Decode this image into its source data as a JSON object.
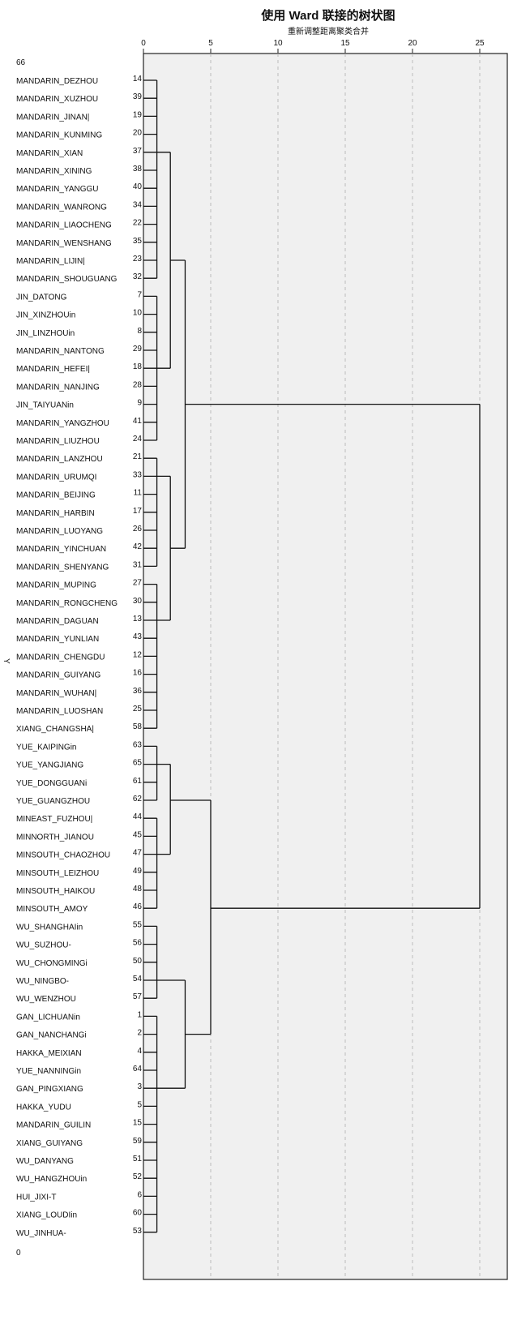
{
  "chart_data": {
    "type": "dendrogram",
    "title": "使用 Ward 联接的树状图",
    "xlabel": "重新调整距离聚类合并",
    "ylabel": "Y",
    "y_top_label": "66",
    "y_bottom_label": "0",
    "xlim": [
      0,
      25
    ],
    "xticks": [
      "0",
      "5",
      "10",
      "15",
      "20",
      "25"
    ],
    "grid": true,
    "leaves": [
      {
        "label": "MANDARIN_DEZHOU",
        "id": "14"
      },
      {
        "label": "MANDARIN_XUZHOU",
        "id": "39"
      },
      {
        "label": "MANDARIN_JINAN|",
        "id": "19"
      },
      {
        "label": "MANDARIN_KUNMING",
        "id": "20"
      },
      {
        "label": "MANDARIN_XIAN",
        "id": "37"
      },
      {
        "label": "MANDARIN_XINING",
        "id": "38"
      },
      {
        "label": "MANDARIN_YANGGU",
        "id": "40"
      },
      {
        "label": "MANDARIN_WANRONG",
        "id": "34"
      },
      {
        "label": "MANDARIN_LIAOCHENG",
        "id": "22"
      },
      {
        "label": "MANDARIN_WENSHANG",
        "id": "35"
      },
      {
        "label": "MANDARIN_LIJIN|",
        "id": "23"
      },
      {
        "label": "MANDARIN_SHOUGUANG",
        "id": "32"
      },
      {
        "label": "JIN_DATONG",
        "id": "7"
      },
      {
        "label": "JIN_XINZHOUin",
        "id": "10"
      },
      {
        "label": "JIN_LINZHOUin",
        "id": "8"
      },
      {
        "label": "MANDARIN_NANTONG",
        "id": "29"
      },
      {
        "label": "MANDARIN_HEFEI|",
        "id": "18"
      },
      {
        "label": "MANDARIN_NANJING",
        "id": "28"
      },
      {
        "label": "JIN_TAIYUANin",
        "id": "9"
      },
      {
        "label": "MANDARIN_YANGZHOU",
        "id": "41"
      },
      {
        "label": "MANDARIN_LIUZHOU",
        "id": "24"
      },
      {
        "label": "MANDARIN_LANZHOU",
        "id": "21"
      },
      {
        "label": "MANDARIN_URUMQI",
        "id": "33"
      },
      {
        "label": "MANDARIN_BEIJING",
        "id": "11"
      },
      {
        "label": "MANDARIN_HARBIN",
        "id": "17"
      },
      {
        "label": "MANDARIN_LUOYANG",
        "id": "26"
      },
      {
        "label": "MANDARIN_YINCHUAN",
        "id": "42"
      },
      {
        "label": "MANDARIN_SHENYANG",
        "id": "31"
      },
      {
        "label": "MANDARIN_MUPING",
        "id": "27"
      },
      {
        "label": "MANDARIN_RONGCHENG",
        "id": "30"
      },
      {
        "label": "MANDARIN_DAGUAN",
        "id": "13"
      },
      {
        "label": "MANDARIN_YUNLIAN",
        "id": "43"
      },
      {
        "label": "MANDARIN_CHENGDU",
        "id": "12"
      },
      {
        "label": "MANDARIN_GUIYANG",
        "id": "16"
      },
      {
        "label": "MANDARIN_WUHAN|",
        "id": "36"
      },
      {
        "label": "MANDARIN_LUOSHAN",
        "id": "25"
      },
      {
        "label": "XIANG_CHANGSHA|",
        "id": "58"
      },
      {
        "label": "YUE_KAIPINGin",
        "id": "63"
      },
      {
        "label": "YUE_YANGJIANG",
        "id": "65"
      },
      {
        "label": "YUE_DONGGUANi",
        "id": "61"
      },
      {
        "label": "YUE_GUANGZHOU",
        "id": "62"
      },
      {
        "label": "MINEAST_FUZHOU|",
        "id": "44"
      },
      {
        "label": "MINNORTH_JIANOU",
        "id": "45"
      },
      {
        "label": "MINSOUTH_CHAOZHOU",
        "id": "47"
      },
      {
        "label": "MINSOUTH_LEIZHOU",
        "id": "49"
      },
      {
        "label": "MINSOUTH_HAIKOU",
        "id": "48"
      },
      {
        "label": "MINSOUTH_AMOY",
        "id": "46"
      },
      {
        "label": "WU_SHANGHAIin",
        "id": "55"
      },
      {
        "label": "WU_SUZHOU-",
        "id": "56"
      },
      {
        "label": "WU_CHONGMINGi",
        "id": "50"
      },
      {
        "label": "WU_NINGBO-",
        "id": "54"
      },
      {
        "label": "WU_WENZHOU",
        "id": "57"
      },
      {
        "label": "GAN_LICHUANin",
        "id": "1"
      },
      {
        "label": "GAN_NANCHANGi",
        "id": "2"
      },
      {
        "label": "HAKKA_MEIXIAN",
        "id": "4"
      },
      {
        "label": "YUE_NANNINGin",
        "id": "64"
      },
      {
        "label": "GAN_PINGXIANG",
        "id": "3"
      },
      {
        "label": "HAKKA_YUDU",
        "id": "5"
      },
      {
        "label": "MANDARIN_GUILIN",
        "id": "15"
      },
      {
        "label": "XIANG_GUIYANG",
        "id": "59"
      },
      {
        "label": "WU_DANYANG",
        "id": "51"
      },
      {
        "label": "WU_HANGZHOUin",
        "id": "52"
      },
      {
        "label": "HUI_JIXI-T",
        "id": "6"
      },
      {
        "label": "XIANG_LOUDIin",
        "id": "60"
      },
      {
        "label": "WU_JINHUA-",
        "id": "53"
      }
    ],
    "clusters": [
      {
        "name": "A",
        "first_leaf": 0,
        "last_leaf": 11,
        "height": 1,
        "join_leaf": 4
      },
      {
        "name": "B",
        "first_leaf": 12,
        "last_leaf": 20,
        "height": 1,
        "join_leaf": 16
      },
      {
        "name": "C",
        "first_leaf": 21,
        "last_leaf": 27,
        "height": 1,
        "join_leaf": 22
      },
      {
        "name": "D",
        "first_leaf": 28,
        "last_leaf": 36,
        "height": 1,
        "join_leaf": 30
      },
      {
        "name": "E",
        "first_leaf": 37,
        "last_leaf": 40,
        "height": 1,
        "join_leaf": 38
      },
      {
        "name": "F",
        "first_leaf": 41,
        "last_leaf": 46,
        "height": 1,
        "join_leaf": 43
      },
      {
        "name": "G",
        "first_leaf": 47,
        "last_leaf": 51,
        "height": 1,
        "join_leaf": 50
      },
      {
        "name": "H",
        "first_leaf": 52,
        "last_leaf": 64,
        "height": 1,
        "join_leaf": 56
      }
    ],
    "merges": [
      {
        "name": "AB",
        "children": [
          "A",
          "B"
        ],
        "height": 2,
        "join_leaf": 10
      },
      {
        "name": "CD",
        "children": [
          "C",
          "D"
        ],
        "height": 2,
        "join_leaf": 26
      },
      {
        "name": "EF",
        "children": [
          "E",
          "F"
        ],
        "height": 2,
        "join_leaf": 40
      },
      {
        "name": "GH",
        "children": [
          "G",
          "H"
        ],
        "height": 3.1,
        "join_leaf": 53
      },
      {
        "name": "ABCD",
        "children": [
          "AB",
          "CD"
        ],
        "height": 3.1,
        "join_leaf": 18
      },
      {
        "name": "EFGH",
        "children": [
          "EF",
          "GH"
        ],
        "height": 5,
        "join_leaf": 46
      },
      {
        "name": "ROOT",
        "children": [
          "ABCD",
          "EFGH"
        ],
        "height": 25,
        "join_leaf": 32
      }
    ]
  }
}
